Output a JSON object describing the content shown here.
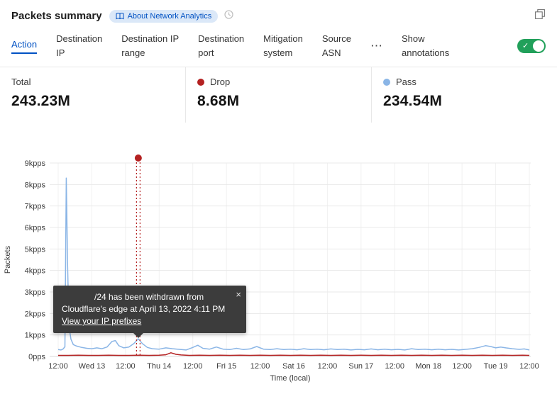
{
  "header": {
    "title": "Packets summary",
    "about_link": "About Network Analytics"
  },
  "tabs": {
    "items": [
      {
        "label": "Action",
        "active": true
      },
      {
        "label": "Destination\nIP",
        "active": false
      },
      {
        "label": "Destination IP\nrange",
        "active": false
      },
      {
        "label": "Destination\nport",
        "active": false
      },
      {
        "label": "Mitigation\nsystem",
        "active": false
      },
      {
        "label": "Source\nASN",
        "active": false
      }
    ],
    "more_label": "⋯",
    "annotations_label": "Show\nannotations",
    "annotations_toggle_on": true
  },
  "stats": [
    {
      "label": "Total",
      "value": "243.23M"
    },
    {
      "label": "Drop",
      "value": "8.68M",
      "dot_color": "#b42121"
    },
    {
      "label": "Pass",
      "value": "234.54M",
      "dot_color": "#8ab5e6"
    }
  ],
  "icons": {
    "close": "×",
    "check": "✓"
  },
  "colors": {
    "accent": "#0051c3",
    "toggle_on": "#21a05a",
    "drop": "#b42121",
    "pass": "#8ab5e6"
  },
  "chart_data": {
    "type": "line",
    "title": "",
    "xlabel": "Time (local)",
    "ylabel": "Packets",
    "x_ticks": [
      "12:00",
      "Wed 13",
      "12:00",
      "Thu 14",
      "12:00",
      "Fri 15",
      "12:00",
      "Sat 16",
      "12:00",
      "Sun 17",
      "12:00",
      "Mon 18",
      "12:00",
      "Tue 19",
      "12:00"
    ],
    "y_ticks": [
      "0pps",
      "1kpps",
      "2kpps",
      "3kpps",
      "4kpps",
      "5kpps",
      "6kpps",
      "7kpps",
      "8kpps",
      "9kpps"
    ],
    "ylim": [
      0,
      9
    ],
    "grid": true,
    "legend_position": "top-stats-row",
    "series": [
      {
        "name": "Pass",
        "color": "#8ab5e6",
        "unit": "kpps",
        "points": [
          [
            0,
            0.32
          ],
          [
            0.08,
            0.3
          ],
          [
            0.14,
            0.34
          ],
          [
            0.2,
            0.45
          ],
          [
            0.24,
            8.3
          ],
          [
            0.28,
            4.2
          ],
          [
            0.32,
            1.4
          ],
          [
            0.38,
            0.8
          ],
          [
            0.45,
            0.55
          ],
          [
            0.55,
            0.48
          ],
          [
            0.7,
            0.42
          ],
          [
            0.85,
            0.38
          ],
          [
            1.0,
            0.36
          ],
          [
            1.15,
            0.4
          ],
          [
            1.3,
            0.36
          ],
          [
            1.45,
            0.44
          ],
          [
            1.6,
            0.7
          ],
          [
            1.7,
            0.74
          ],
          [
            1.8,
            0.5
          ],
          [
            1.95,
            0.4
          ],
          [
            2.1,
            0.44
          ],
          [
            2.25,
            0.6
          ],
          [
            2.38,
            0.82
          ],
          [
            2.5,
            0.6
          ],
          [
            2.65,
            0.42
          ],
          [
            2.8,
            0.36
          ],
          [
            3.0,
            0.34
          ],
          [
            3.2,
            0.4
          ],
          [
            3.4,
            0.36
          ],
          [
            3.6,
            0.33
          ],
          [
            3.8,
            0.3
          ],
          [
            4.0,
            0.42
          ],
          [
            4.15,
            0.52
          ],
          [
            4.3,
            0.38
          ],
          [
            4.5,
            0.34
          ],
          [
            4.7,
            0.44
          ],
          [
            4.9,
            0.34
          ],
          [
            5.1,
            0.32
          ],
          [
            5.3,
            0.38
          ],
          [
            5.5,
            0.32
          ],
          [
            5.7,
            0.35
          ],
          [
            5.9,
            0.46
          ],
          [
            6.1,
            0.34
          ],
          [
            6.3,
            0.32
          ],
          [
            6.5,
            0.36
          ],
          [
            6.7,
            0.32
          ],
          [
            6.9,
            0.34
          ],
          [
            7.1,
            0.31
          ],
          [
            7.3,
            0.36
          ],
          [
            7.5,
            0.32
          ],
          [
            7.7,
            0.34
          ],
          [
            7.9,
            0.31
          ],
          [
            8.1,
            0.35
          ],
          [
            8.3,
            0.32
          ],
          [
            8.5,
            0.34
          ],
          [
            8.7,
            0.3
          ],
          [
            8.9,
            0.33
          ],
          [
            9.1,
            0.31
          ],
          [
            9.3,
            0.35
          ],
          [
            9.5,
            0.31
          ],
          [
            9.7,
            0.34
          ],
          [
            9.9,
            0.31
          ],
          [
            10.1,
            0.33
          ],
          [
            10.3,
            0.3
          ],
          [
            10.5,
            0.36
          ],
          [
            10.7,
            0.32
          ],
          [
            10.9,
            0.34
          ],
          [
            11.1,
            0.31
          ],
          [
            11.3,
            0.34
          ],
          [
            11.5,
            0.31
          ],
          [
            11.7,
            0.33
          ],
          [
            11.9,
            0.3
          ],
          [
            12.1,
            0.33
          ],
          [
            12.3,
            0.36
          ],
          [
            12.5,
            0.42
          ],
          [
            12.7,
            0.5
          ],
          [
            12.85,
            0.46
          ],
          [
            13.0,
            0.4
          ],
          [
            13.15,
            0.44
          ],
          [
            13.3,
            0.4
          ],
          [
            13.5,
            0.36
          ],
          [
            13.7,
            0.33
          ],
          [
            13.85,
            0.35
          ],
          [
            14,
            0.3
          ]
        ]
      },
      {
        "name": "Drop",
        "color": "#b42121",
        "unit": "kpps",
        "points": [
          [
            0,
            0.05
          ],
          [
            0.3,
            0.05
          ],
          [
            0.6,
            0.06
          ],
          [
            0.9,
            0.05
          ],
          [
            1.2,
            0.05
          ],
          [
            1.5,
            0.06
          ],
          [
            1.8,
            0.05
          ],
          [
            2.1,
            0.05
          ],
          [
            2.4,
            0.06
          ],
          [
            2.7,
            0.05
          ],
          [
            3.0,
            0.06
          ],
          [
            3.2,
            0.08
          ],
          [
            3.35,
            0.17
          ],
          [
            3.5,
            0.1
          ],
          [
            3.65,
            0.07
          ],
          [
            3.9,
            0.05
          ],
          [
            4.2,
            0.06
          ],
          [
            4.5,
            0.05
          ],
          [
            4.8,
            0.06
          ],
          [
            5.1,
            0.05
          ],
          [
            5.4,
            0.06
          ],
          [
            5.7,
            0.05
          ],
          [
            6.0,
            0.06
          ],
          [
            6.3,
            0.05
          ],
          [
            6.6,
            0.06
          ],
          [
            6.9,
            0.05
          ],
          [
            7.2,
            0.06
          ],
          [
            7.5,
            0.05
          ],
          [
            7.8,
            0.06
          ],
          [
            8.1,
            0.05
          ],
          [
            8.4,
            0.06
          ],
          [
            8.7,
            0.05
          ],
          [
            9.0,
            0.06
          ],
          [
            9.3,
            0.05
          ],
          [
            9.6,
            0.06
          ],
          [
            9.9,
            0.05
          ],
          [
            10.2,
            0.06
          ],
          [
            10.5,
            0.05
          ],
          [
            10.8,
            0.06
          ],
          [
            11.1,
            0.05
          ],
          [
            11.4,
            0.06
          ],
          [
            11.7,
            0.05
          ],
          [
            12.0,
            0.06
          ],
          [
            12.3,
            0.05
          ],
          [
            12.6,
            0.06
          ],
          [
            12.9,
            0.05
          ],
          [
            13.2,
            0.06
          ],
          [
            13.5,
            0.05
          ],
          [
            13.8,
            0.06
          ],
          [
            14,
            0.05
          ]
        ]
      }
    ],
    "annotation": {
      "x": 2.38,
      "color": "#b42121",
      "tooltip": {
        "text": "/24 has been withdrawn from Cloudflare's edge at April 13, 2022 4:11 PM",
        "link": "View your IP prefixes"
      }
    }
  }
}
